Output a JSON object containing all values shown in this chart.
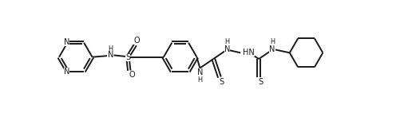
{
  "background_color": "#ffffff",
  "line_color": "#1a1a1a",
  "line_width": 1.4,
  "font_size": 7.0,
  "fig_width": 5.26,
  "fig_height": 1.42,
  "dpi": 100,
  "xlim": [
    0,
    5.26
  ],
  "ylim": [
    -0.71,
    0.71
  ]
}
